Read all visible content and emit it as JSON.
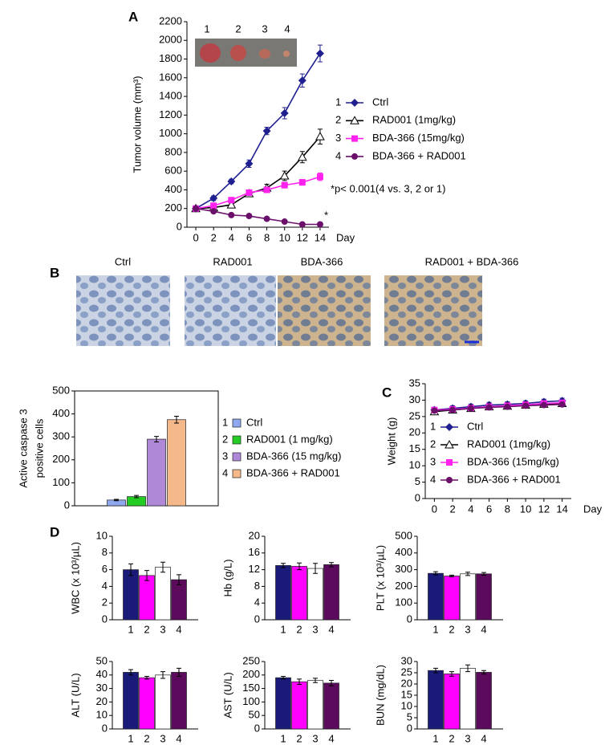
{
  "micrographs": [
    "Ctrl",
    "RAD001",
    "BDA-366",
    "RAD001 + BDA-366"
  ],
  "chart_data": [
    {
      "type": "line",
      "panel": "A",
      "x_label": "Day",
      "y_label": "Tumor volume (mm³)",
      "image_labels": [
        "1",
        "2",
        "3",
        "4"
      ],
      "annotations": [
        "*p< 0.001(4 vs. 3, 2 or 1)",
        "*"
      ],
      "x": [
        0,
        2,
        4,
        6,
        8,
        10,
        12,
        14
      ],
      "xlim": [
        -1,
        15
      ],
      "xticks": [
        0,
        2,
        4,
        6,
        8,
        10,
        12,
        14
      ],
      "ylim": [
        0,
        2200
      ],
      "yticks": [
        0,
        200,
        400,
        600,
        800,
        1000,
        1200,
        1400,
        1600,
        1800,
        2000,
        2200
      ],
      "series": [
        {
          "key": "1",
          "name": "Ctrl",
          "color": "#1f1f8f",
          "marker": "diamond",
          "values": [
            200,
            310,
            490,
            680,
            1030,
            1220,
            1570,
            1860
          ],
          "errors": [
            20,
            25,
            25,
            40,
            40,
            60,
            70,
            90
          ]
        },
        {
          "key": "2",
          "name": "RAD001 (1mg/kg)",
          "color": "#000000",
          "marker": "triangle-open",
          "values": [
            200,
            210,
            240,
            360,
            420,
            550,
            750,
            970
          ],
          "errors": [
            20,
            20,
            20,
            30,
            40,
            50,
            60,
            80
          ]
        },
        {
          "key": "3",
          "name": "BDA-366 (15mg/kg)",
          "color": "#ff22ee",
          "marker": "square",
          "values": [
            200,
            230,
            290,
            370,
            400,
            450,
            480,
            540
          ],
          "errors": [
            20,
            20,
            20,
            25,
            30,
            30,
            30,
            40
          ]
        },
        {
          "key": "4",
          "name": "BDA-366 + RAD001",
          "color": "#6a0f6a",
          "marker": "circle",
          "values": [
            200,
            170,
            130,
            120,
            90,
            60,
            30,
            30
          ],
          "errors": [
            15,
            15,
            15,
            10,
            10,
            10,
            10,
            10
          ]
        }
      ]
    },
    {
      "type": "bar",
      "y_label": [
        "Active caspase 3",
        "positive cells"
      ],
      "ylim": [
        0,
        500
      ],
      "yticks": [
        0,
        100,
        200,
        300,
        400,
        500
      ],
      "values": [
        25,
        40,
        290,
        375
      ],
      "errors": [
        3,
        5,
        12,
        15
      ],
      "colors": [
        "#8fa8f0",
        "#22cc22",
        "#b088d8",
        "#f4b88a"
      ],
      "legend": [
        {
          "key": "1",
          "label": "Ctrl"
        },
        {
          "key": "2",
          "label": "RAD001 (1 mg/kg)"
        },
        {
          "key": "3",
          "label": "BDA-366 (15 mg/kg)"
        },
        {
          "key": "4",
          "label": "BDA-366 + RAD001"
        }
      ]
    },
    {
      "type": "line",
      "panel": "C",
      "x_label": "Day",
      "y_label": "Weight (g)",
      "x": [
        0,
        2,
        4,
        6,
        8,
        10,
        12,
        14
      ],
      "xlim": [
        -1,
        15
      ],
      "xticks": [
        0,
        2,
        4,
        6,
        8,
        10,
        12,
        14
      ],
      "ylim": [
        0,
        35
      ],
      "yticks": [
        0,
        5,
        10,
        15,
        20,
        25,
        30,
        35
      ],
      "series": [
        {
          "key": "1",
          "name": "Ctrl",
          "color": "#1f1f8f",
          "marker": "diamond",
          "values": [
            27,
            27.5,
            28,
            28.5,
            28.7,
            29,
            29.5,
            29.8
          ],
          "errors": [
            0.8,
            0.8,
            0.8,
            0.8,
            0.8,
            0.8,
            0.8,
            0.8
          ]
        },
        {
          "key": "2",
          "name": "RAD001 (1mg/kg)",
          "color": "#000000",
          "marker": "triangle-open",
          "values": [
            26.5,
            27,
            27.5,
            28,
            28.2,
            28.5,
            28.8,
            29
          ],
          "errors": [
            0.6,
            0.6,
            0.6,
            0.6,
            0.6,
            0.6,
            0.6,
            0.6
          ]
        },
        {
          "key": "3",
          "name": "BDA-366 (15mg/kg)",
          "color": "#ff22ee",
          "marker": "square",
          "values": [
            27,
            27.2,
            27.6,
            28,
            28.3,
            28.6,
            29,
            29.2
          ],
          "errors": [
            0.6,
            0.6,
            0.6,
            0.6,
            0.6,
            0.6,
            0.6,
            0.6
          ]
        },
        {
          "key": "4",
          "name": "BDA-366 + RAD001",
          "color": "#6a0f6a",
          "marker": "circle",
          "values": [
            26.8,
            27,
            27.5,
            27.8,
            28,
            28.3,
            28.5,
            28.7
          ],
          "errors": [
            0.5,
            0.5,
            0.5,
            0.5,
            0.5,
            0.5,
            0.5,
            0.5
          ]
        }
      ]
    },
    {
      "type": "bar",
      "panel": "D",
      "y_label": "WBC (x 10³/µL)",
      "categories": [
        "1",
        "2",
        "3",
        "4"
      ],
      "ylim": [
        0,
        10
      ],
      "yticks": [
        0,
        2,
        4,
        6,
        8,
        10
      ],
      "values": [
        6,
        5.3,
        6.3,
        4.8
      ],
      "errors": [
        0.7,
        0.6,
        0.6,
        0.6
      ],
      "colors": [
        "#1a1a78",
        "#ff00ff",
        "#ffffff",
        "#5c0a5c"
      ]
    },
    {
      "type": "bar",
      "y_label": "Hb (g/L)",
      "categories": [
        "1",
        "2",
        "3",
        "4"
      ],
      "ylim": [
        0,
        20
      ],
      "yticks": [
        0,
        4,
        8,
        12,
        16,
        20
      ],
      "values": [
        13,
        12.8,
        12.3,
        13.2
      ],
      "errors": [
        0.5,
        0.8,
        1.2,
        0.5
      ],
      "colors": [
        "#1a1a78",
        "#ff00ff",
        "#ffffff",
        "#5c0a5c"
      ]
    },
    {
      "type": "bar",
      "y_label": "PLT (x 10³/µL)",
      "categories": [
        "1",
        "2",
        "3",
        "4"
      ],
      "ylim": [
        0,
        500
      ],
      "yticks": [
        0,
        100,
        200,
        300,
        400,
        500
      ],
      "values": [
        278,
        262,
        275,
        275
      ],
      "errors": [
        10,
        5,
        10,
        8
      ],
      "colors": [
        "#1a1a78",
        "#ff00ff",
        "#ffffff",
        "#5c0a5c"
      ]
    },
    {
      "type": "bar",
      "y_label": "ALT (U/L)",
      "categories": [
        "1",
        "2",
        "3",
        "4"
      ],
      "ylim": [
        0,
        50
      ],
      "yticks": [
        0,
        10,
        20,
        30,
        40,
        50
      ],
      "values": [
        42,
        38,
        40,
        42
      ],
      "errors": [
        2,
        1,
        2.5,
        3
      ],
      "colors": [
        "#1a1a78",
        "#ff00ff",
        "#ffffff",
        "#5c0a5c"
      ]
    },
    {
      "type": "bar",
      "y_label": "AST (U/L)",
      "categories": [
        "1",
        "2",
        "3",
        "4"
      ],
      "ylim": [
        0,
        250
      ],
      "yticks": [
        0,
        50,
        100,
        150,
        200,
        250
      ],
      "values": [
        190,
        175,
        180,
        170
      ],
      "errors": [
        5,
        10,
        8,
        10
      ],
      "colors": [
        "#1a1a78",
        "#ff00ff",
        "#ffffff",
        "#5c0a5c"
      ]
    },
    {
      "type": "bar",
      "y_label": "BUN (mg/dL)",
      "categories": [
        "1",
        "2",
        "3",
        "4"
      ],
      "ylim": [
        0,
        30
      ],
      "yticks": [
        0,
        5,
        10,
        15,
        20,
        25,
        30
      ],
      "values": [
        26,
        24.5,
        27,
        25.2
      ],
      "errors": [
        1,
        1,
        1.5,
        0.8
      ],
      "colors": [
        "#1a1a78",
        "#ff00ff",
        "#ffffff",
        "#5c0a5c"
      ]
    }
  ]
}
